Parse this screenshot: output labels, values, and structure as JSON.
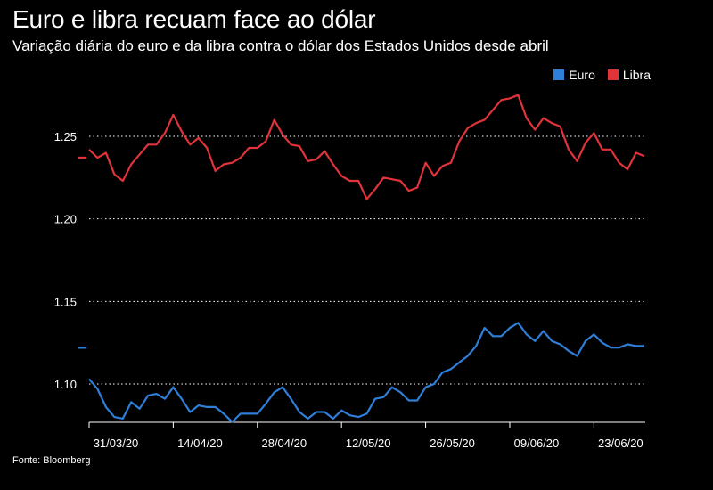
{
  "title": "Euro e libra recuam face ao dólar",
  "subtitle": "Variação diária do euro e da libra contra o dólar dos Estados Unidos desde abril",
  "source": "Fonte: Bloomberg",
  "chart_data": {
    "type": "line",
    "x_tick_labels": [
      "31/03/20",
      "14/04/20",
      "28/04/20",
      "12/05/20",
      "26/05/20",
      "09/06/20",
      "23/06/20"
    ],
    "y_ticks": [
      1.1,
      1.15,
      1.2,
      1.25
    ],
    "y_tick_labels": [
      "1.10",
      "1.15",
      "1.20",
      "1.25"
    ],
    "ylim": [
      1.075,
      1.28
    ],
    "grid": "horizontal dotted",
    "legend_position": "top-right",
    "series": [
      {
        "name": "Euro",
        "color": "#2f7ed8",
        "start_value": 1.122,
        "values": [
          1.103,
          1.097,
          1.086,
          1.08,
          1.079,
          1.089,
          1.085,
          1.093,
          1.094,
          1.091,
          1.098,
          1.091,
          1.083,
          1.087,
          1.086,
          1.086,
          1.082,
          1.077,
          1.082,
          1.082,
          1.082,
          1.088,
          1.095,
          1.098,
          1.091,
          1.083,
          1.079,
          1.083,
          1.083,
          1.079,
          1.084,
          1.081,
          1.08,
          1.082,
          1.091,
          1.092,
          1.098,
          1.095,
          1.09,
          1.09,
          1.098,
          1.1,
          1.107,
          1.109,
          1.113,
          1.117,
          1.123,
          1.134,
          1.129,
          1.129,
          1.134,
          1.137,
          1.13,
          1.126,
          1.132,
          1.126,
          1.124,
          1.12,
          1.117,
          1.126,
          1.13,
          1.125,
          1.122,
          1.122,
          1.124,
          1.123,
          1.123
        ]
      },
      {
        "name": "Libra",
        "color": "#e0333a",
        "start_value": 1.237,
        "values": [
          1.242,
          1.237,
          1.24,
          1.227,
          1.223,
          1.233,
          1.239,
          1.245,
          1.245,
          1.252,
          1.263,
          1.253,
          1.245,
          1.249,
          1.243,
          1.229,
          1.233,
          1.234,
          1.237,
          1.243,
          1.243,
          1.247,
          1.26,
          1.251,
          1.245,
          1.244,
          1.235,
          1.236,
          1.241,
          1.233,
          1.226,
          1.223,
          1.223,
          1.212,
          1.218,
          1.225,
          1.224,
          1.223,
          1.217,
          1.219,
          1.234,
          1.226,
          1.232,
          1.234,
          1.247,
          1.255,
          1.258,
          1.26,
          1.266,
          1.272,
          1.273,
          1.275,
          1.261,
          1.254,
          1.261,
          1.258,
          1.256,
          1.242,
          1.235,
          1.246,
          1.252,
          1.242,
          1.242,
          1.234,
          1.23,
          1.24,
          1.238
        ]
      }
    ]
  }
}
